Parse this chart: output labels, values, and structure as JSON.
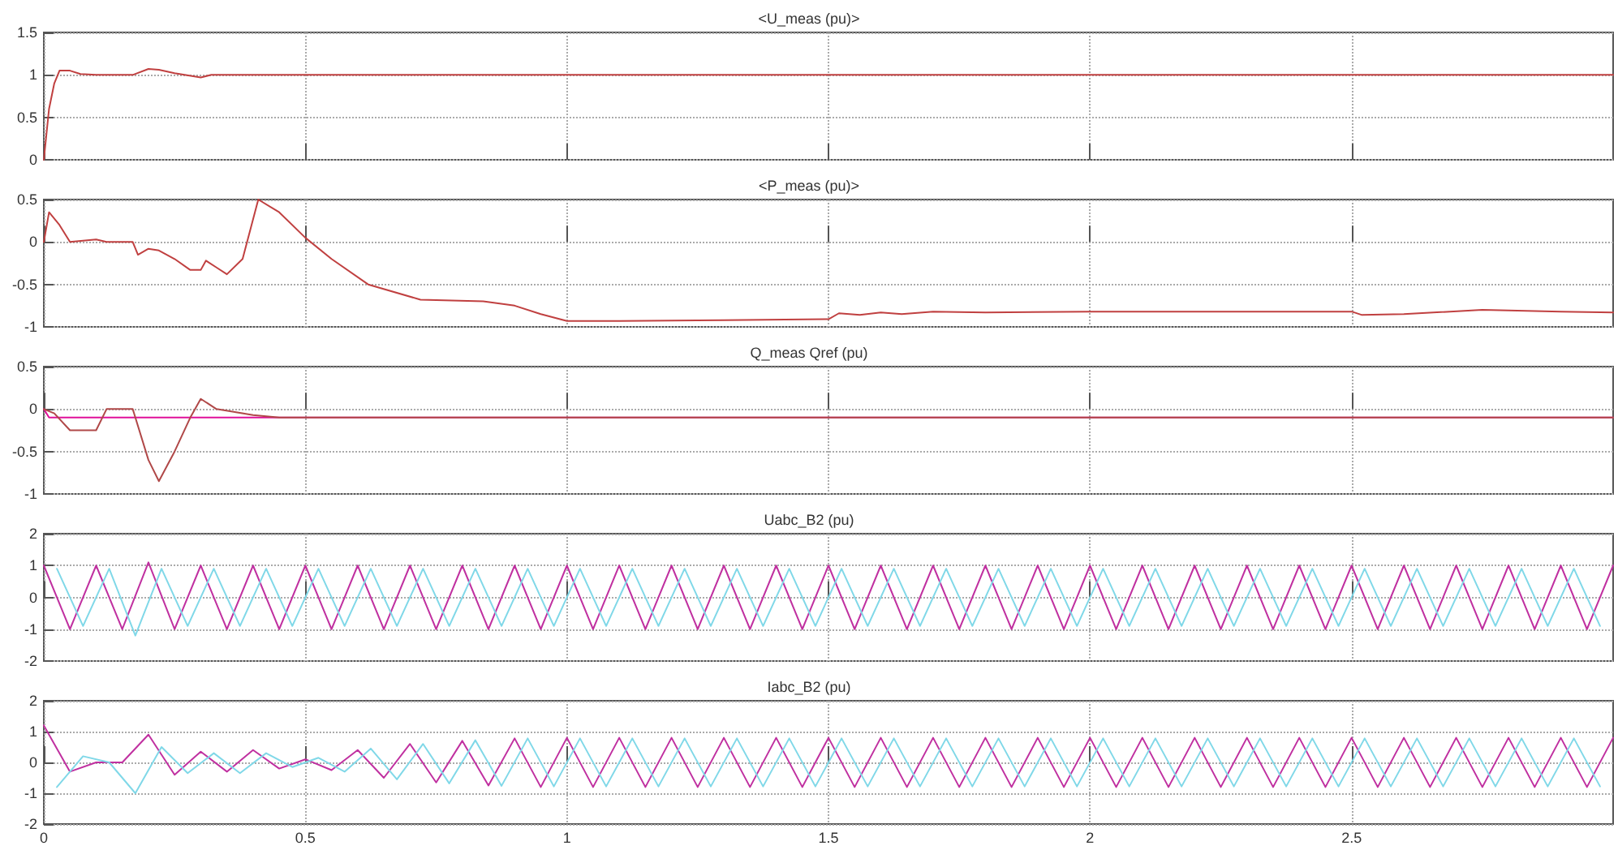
{
  "chart_data": [
    {
      "type": "line",
      "title": "<U_meas (pu)>",
      "xlim": [
        0,
        3
      ],
      "xticks": [
        0,
        0.5,
        1,
        1.5,
        2,
        2.5
      ],
      "ylim": [
        0,
        1.5
      ],
      "yticks": [
        0,
        0.5,
        1,
        1.5
      ],
      "grid": true,
      "tick_labels": "y",
      "series": [
        {
          "color": "#c04040",
          "x": [
            0,
            0.01,
            0.02,
            0.03,
            0.05,
            0.07,
            0.1,
            0.17,
            0.2,
            0.22,
            0.25,
            0.3,
            0.32,
            0.5,
            1,
            1.5,
            2,
            2.5,
            3
          ],
          "values": [
            0,
            0.6,
            0.9,
            1.05,
            1.05,
            1.01,
            1,
            1,
            1.07,
            1.06,
            1.02,
            0.97,
            1,
            1,
            1,
            1,
            1,
            1,
            1
          ]
        }
      ]
    },
    {
      "type": "line",
      "title": "<P_meas (pu)>",
      "xlim": [
        0,
        3
      ],
      "xticks": [
        0,
        0.5,
        1,
        1.5,
        2,
        2.5
      ],
      "ylim": [
        -1,
        0.5
      ],
      "yticks": [
        -1,
        -0.5,
        0,
        0.5
      ],
      "grid": true,
      "tick_labels": "y",
      "series": [
        {
          "color": "#c04040",
          "x": [
            0,
            0.01,
            0.03,
            0.05,
            0.1,
            0.12,
            0.17,
            0.18,
            0.2,
            0.22,
            0.25,
            0.28,
            0.3,
            0.31,
            0.33,
            0.35,
            0.38,
            0.41,
            0.45,
            0.5,
            0.55,
            0.62,
            0.72,
            0.84,
            0.9,
            0.95,
            1,
            1.1,
            1.3,
            1.5,
            1.52,
            1.56,
            1.6,
            1.64,
            1.7,
            1.8,
            2,
            2.2,
            2.5,
            2.52,
            2.6,
            2.75,
            2.9,
            3
          ],
          "values": [
            0,
            0.35,
            0.2,
            0,
            0.03,
            0,
            0,
            -0.15,
            -0.08,
            -0.1,
            -0.2,
            -0.33,
            -0.33,
            -0.22,
            -0.3,
            -0.38,
            -0.2,
            0.5,
            0.35,
            0.05,
            -0.2,
            -0.5,
            -0.68,
            -0.7,
            -0.75,
            -0.85,
            -0.93,
            -0.93,
            -0.92,
            -0.91,
            -0.84,
            -0.86,
            -0.83,
            -0.85,
            -0.82,
            -0.83,
            -0.82,
            -0.82,
            -0.82,
            -0.86,
            -0.85,
            -0.8,
            -0.82,
            -0.83
          ]
        }
      ]
    },
    {
      "type": "line",
      "title": "Q_meas Qref (pu)",
      "xlim": [
        0,
        3
      ],
      "xticks": [
        0,
        0.5,
        1,
        1.5,
        2,
        2.5
      ],
      "ylim": [
        -1,
        0.5
      ],
      "yticks": [
        -1,
        -0.5,
        0,
        0.5
      ],
      "grid": true,
      "tick_labels": "y",
      "series": [
        {
          "color": "#e0109a",
          "x": [
            0,
            0.01,
            3
          ],
          "values": [
            0,
            -0.1,
            -0.1
          ]
        },
        {
          "color": "#b04848",
          "x": [
            0,
            0.02,
            0.05,
            0.1,
            0.12,
            0.17,
            0.2,
            0.22,
            0.25,
            0.28,
            0.3,
            0.33,
            0.4,
            0.45,
            0.5,
            1,
            1.5,
            2,
            2.5,
            3
          ],
          "values": [
            0,
            -0.05,
            -0.25,
            -0.25,
            0,
            0,
            -0.6,
            -0.85,
            -0.5,
            -0.1,
            0.12,
            0,
            -0.07,
            -0.1,
            -0.1,
            -0.1,
            -0.1,
            -0.1,
            -0.1,
            -0.1
          ]
        }
      ]
    },
    {
      "type": "line",
      "title": "Uabc_B2 (pu)",
      "xlim": [
        0,
        3
      ],
      "xticks": [
        0,
        0.5,
        1,
        1.5,
        2,
        2.5
      ],
      "ylim": [
        -2,
        2
      ],
      "yticks": [
        -2,
        -1,
        0,
        1,
        2
      ],
      "grid": true,
      "tick_labels": "y",
      "series": [
        {
          "color": "#c030a0",
          "x": [
            0,
            0.05,
            0.1,
            0.15,
            0.2,
            0.25,
            0.3,
            0.35,
            0.4,
            0.45,
            0.5,
            0.55,
            0.6,
            0.65,
            0.7,
            0.75,
            0.8,
            0.85,
            0.9,
            0.95,
            1,
            1.05,
            1.1,
            1.15,
            1.2,
            1.25,
            1.3,
            1.35,
            1.4,
            1.45,
            1.5,
            1.55,
            1.6,
            1.65,
            1.7,
            1.75,
            1.8,
            1.85,
            1.9,
            1.95,
            2,
            2.05,
            2.1,
            2.15,
            2.2,
            2.25,
            2.3,
            2.35,
            2.4,
            2.45,
            2.5,
            2.55,
            2.6,
            2.65,
            2.7,
            2.75,
            2.8,
            2.85,
            2.9,
            2.95,
            3
          ],
          "values": [
            1,
            -1,
            1,
            -1,
            1.1,
            -1,
            1,
            -1,
            1,
            -1,
            1,
            -1,
            1,
            -1,
            1,
            -1,
            1,
            -1,
            1,
            -1,
            1,
            -1,
            1,
            -1,
            1,
            -1,
            1,
            -1,
            1,
            -1,
            1,
            -1,
            1,
            -1,
            1,
            -1,
            1,
            -1,
            1,
            -1,
            1,
            -1,
            1,
            -1,
            1,
            -1,
            1,
            -1,
            1,
            -1,
            1,
            -1,
            1,
            -1,
            1,
            -1,
            1,
            -1,
            1,
            -1,
            1
          ]
        },
        {
          "color": "#80d8e8",
          "x": [
            0.025,
            0.075,
            0.125,
            0.175,
            0.225,
            0.275,
            0.325,
            0.375,
            0.425,
            0.475,
            0.525,
            0.575,
            0.625,
            0.675,
            0.725,
            0.775,
            0.825,
            0.875,
            0.925,
            0.975,
            1.025,
            1.075,
            1.125,
            1.175,
            1.225,
            1.275,
            1.325,
            1.375,
            1.425,
            1.475,
            1.525,
            1.575,
            1.625,
            1.675,
            1.725,
            1.775,
            1.825,
            1.875,
            1.925,
            1.975,
            2.025,
            2.075,
            2.125,
            2.175,
            2.225,
            2.275,
            2.325,
            2.375,
            2.425,
            2.475,
            2.525,
            2.575,
            2.625,
            2.675,
            2.725,
            2.775,
            2.825,
            2.875,
            2.925,
            2.975
          ],
          "values": [
            0.9,
            -0.9,
            0.9,
            -1.2,
            0.9,
            -0.9,
            0.9,
            -0.9,
            0.9,
            -0.9,
            0.9,
            -0.9,
            0.9,
            -0.9,
            0.9,
            -0.9,
            0.9,
            -0.9,
            0.9,
            -0.9,
            0.9,
            -0.9,
            0.9,
            -0.9,
            0.9,
            -0.9,
            0.9,
            -0.9,
            0.9,
            -0.9,
            0.9,
            -0.9,
            0.9,
            -0.9,
            0.9,
            -0.9,
            0.9,
            -0.9,
            0.9,
            -0.9,
            0.9,
            -0.9,
            0.9,
            -0.9,
            0.9,
            -0.9,
            0.9,
            -0.9,
            0.9,
            -0.9,
            0.9,
            -0.9,
            0.9,
            -0.9,
            0.9,
            -0.9,
            0.9,
            -0.9,
            0.9,
            -0.9
          ]
        }
      ]
    },
    {
      "type": "line",
      "title": "Iabc_B2 (pu)",
      "xlim": [
        0,
        3
      ],
      "xticks": [
        0,
        0.5,
        1,
        1.5,
        2,
        2.5
      ],
      "ylim": [
        -2,
        2
      ],
      "yticks": [
        -2,
        -1,
        0,
        1,
        2
      ],
      "grid": true,
      "series": [
        {
          "color": "#c030a0",
          "x": [
            0,
            0.05,
            0.1,
            0.15,
            0.2,
            0.25,
            0.3,
            0.35,
            0.4,
            0.45,
            0.5,
            0.55,
            0.6,
            0.65,
            0.7,
            0.75,
            0.8,
            0.85,
            0.9,
            0.95,
            1,
            1.05,
            1.1,
            1.15,
            1.2,
            1.25,
            1.3,
            1.35,
            1.4,
            1.45,
            1.5,
            1.55,
            1.6,
            1.65,
            1.7,
            1.75,
            1.8,
            1.85,
            1.9,
            1.95,
            2,
            2.05,
            2.1,
            2.15,
            2.2,
            2.25,
            2.3,
            2.35,
            2.4,
            2.45,
            2.5,
            2.55,
            2.6,
            2.65,
            2.7,
            2.75,
            2.8,
            2.85,
            2.9,
            2.95,
            3
          ],
          "values": [
            1.2,
            -0.3,
            0,
            0,
            0.9,
            -0.4,
            0.35,
            -0.3,
            0.4,
            -0.2,
            0.1,
            -0.25,
            0.4,
            -0.5,
            0.6,
            -0.65,
            0.7,
            -0.75,
            0.78,
            -0.8,
            0.8,
            -0.8,
            0.8,
            -0.8,
            0.8,
            -0.8,
            0.8,
            -0.8,
            0.8,
            -0.8,
            0.8,
            -0.8,
            0.8,
            -0.8,
            0.8,
            -0.8,
            0.8,
            -0.8,
            0.8,
            -0.8,
            0.8,
            -0.8,
            0.8,
            -0.8,
            0.8,
            -0.8,
            0.8,
            -0.8,
            0.8,
            -0.8,
            0.8,
            -0.8,
            0.8,
            -0.8,
            0.8,
            -0.8,
            0.8,
            -0.8,
            0.8,
            -0.8,
            0.8
          ]
        },
        {
          "color": "#80d8e8",
          "x": [
            0.025,
            0.075,
            0.125,
            0.175,
            0.225,
            0.275,
            0.325,
            0.375,
            0.425,
            0.475,
            0.525,
            0.575,
            0.625,
            0.675,
            0.725,
            0.775,
            0.825,
            0.875,
            0.925,
            0.975,
            1.025,
            1.075,
            1.125,
            1.175,
            1.225,
            1.275,
            1.325,
            1.375,
            1.425,
            1.475,
            1.525,
            1.575,
            1.625,
            1.675,
            1.725,
            1.775,
            1.825,
            1.875,
            1.925,
            1.975,
            2.025,
            2.075,
            2.125,
            2.175,
            2.225,
            2.275,
            2.325,
            2.375,
            2.425,
            2.475,
            2.525,
            2.575,
            2.625,
            2.675,
            2.725,
            2.775,
            2.825,
            2.875,
            2.925,
            2.975
          ],
          "values": [
            -0.8,
            0.2,
            0,
            -1,
            0.5,
            -0.35,
            0.3,
            -0.35,
            0.3,
            -0.15,
            0.15,
            -0.3,
            0.45,
            -0.55,
            0.6,
            -0.68,
            0.72,
            -0.76,
            0.78,
            -0.78,
            0.78,
            -0.78,
            0.78,
            -0.78,
            0.78,
            -0.78,
            0.78,
            -0.78,
            0.78,
            -0.78,
            0.78,
            -0.78,
            0.78,
            -0.78,
            0.78,
            -0.78,
            0.78,
            -0.78,
            0.78,
            -0.78,
            0.78,
            -0.78,
            0.78,
            -0.78,
            0.78,
            -0.78,
            0.78,
            -0.78,
            0.78,
            -0.78,
            0.78,
            -0.78,
            0.78,
            -0.78,
            0.78,
            -0.78,
            0.78,
            -0.78,
            0.78,
            -0.78
          ]
        }
      ]
    }
  ]
}
